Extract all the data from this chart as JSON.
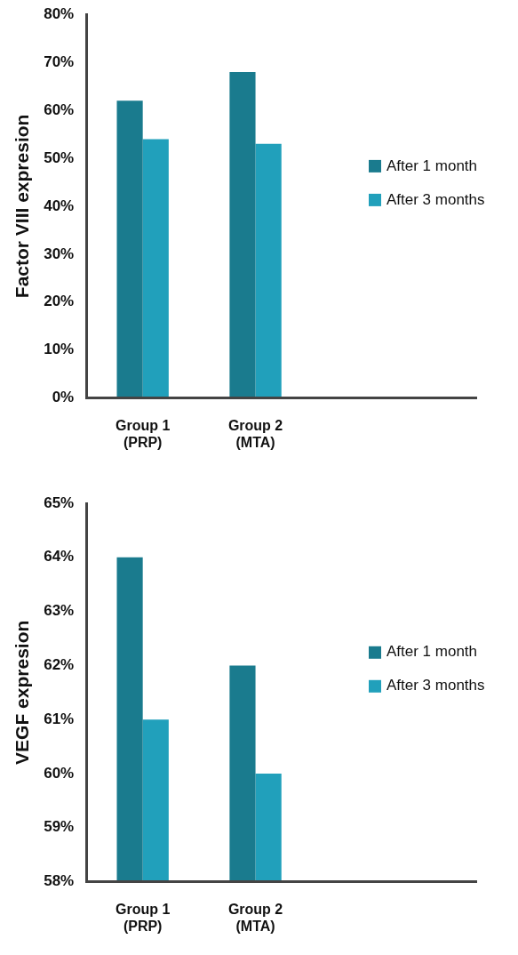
{
  "chart_data": [
    {
      "type": "bar",
      "ylabel": "Factor VIII expresion",
      "categories": [
        "Group 1\n(PRP)",
        "Group 2\n(MTA)"
      ],
      "series": [
        {
          "name": "After 1 month",
          "color": "#1a7b8e",
          "values": [
            62,
            68
          ]
        },
        {
          "name": "After 3 months",
          "color": "#21a0bb",
          "values": [
            54,
            53
          ]
        }
      ],
      "ylim": [
        0,
        80
      ],
      "yticks": [
        {
          "value": 0,
          "label": "0%"
        },
        {
          "value": 10,
          "label": "10%"
        },
        {
          "value": 20,
          "label": "20%"
        },
        {
          "value": 30,
          "label": "30%"
        },
        {
          "value": 40,
          "label": "40%"
        },
        {
          "value": 50,
          "label": "50%"
        },
        {
          "value": 60,
          "label": "60%"
        },
        {
          "value": 70,
          "label": "70%"
        },
        {
          "value": 80,
          "label": "80%"
        }
      ],
      "legend": "right"
    },
    {
      "type": "bar",
      "ylabel": "VEGF expresion",
      "categories": [
        "Group 1\n(PRP)",
        "Group 2\n(MTA)"
      ],
      "series": [
        {
          "name": "After 1 month",
          "color": "#1a7b8e",
          "values": [
            64,
            62
          ]
        },
        {
          "name": "After 3 months",
          "color": "#21a0bb",
          "values": [
            61,
            60
          ]
        }
      ],
      "ylim": [
        58,
        65
      ],
      "yticks": [
        {
          "value": 58,
          "label": "58%"
        },
        {
          "value": 59,
          "label": "59%"
        },
        {
          "value": 60,
          "label": "60%"
        },
        {
          "value": 61,
          "label": "61%"
        },
        {
          "value": 62,
          "label": "62%"
        },
        {
          "value": 63,
          "label": "63%"
        },
        {
          "value": 64,
          "label": "64%"
        },
        {
          "value": 65,
          "label": "65%"
        }
      ],
      "legend": "right"
    }
  ]
}
